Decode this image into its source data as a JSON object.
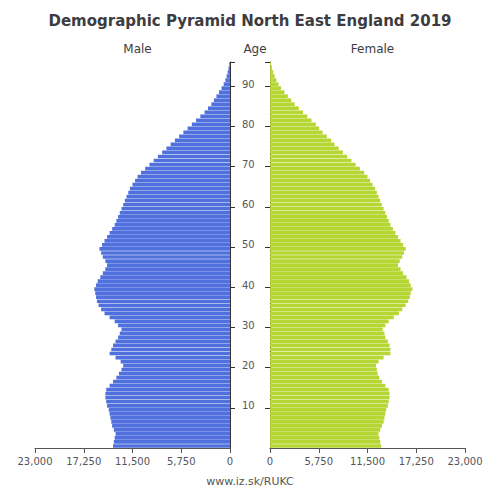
{
  "chart_data": {
    "type": "bar",
    "orientation": "horizontal",
    "title": "Demographic Pyramid North East England 2019",
    "ylabel": "Age",
    "annotations": [
      "www.iz.sk/RUKC"
    ],
    "grid": false,
    "categories": [
      null,
      null,
      null,
      null,
      null,
      null,
      null,
      null,
      null,
      null,
      "10",
      null,
      null,
      null,
      null,
      null,
      null,
      null,
      null,
      null,
      "20",
      null,
      null,
      null,
      null,
      null,
      null,
      null,
      null,
      null,
      "30",
      null,
      null,
      null,
      null,
      null,
      null,
      null,
      null,
      null,
      "40",
      null,
      null,
      null,
      null,
      null,
      null,
      null,
      null,
      null,
      "50",
      null,
      null,
      null,
      null,
      null,
      null,
      null,
      null,
      null,
      "60",
      null,
      null,
      null,
      null,
      null,
      null,
      null,
      null,
      null,
      "70",
      null,
      null,
      null,
      null,
      null,
      null,
      null,
      null,
      null,
      "80",
      null,
      null,
      null,
      null,
      null,
      null,
      null,
      null,
      null,
      "90",
      null,
      null,
      null,
      null,
      null
    ],
    "xlim": [
      0,
      23000
    ],
    "xticks": [
      0,
      5750,
      11500,
      17250,
      23000
    ],
    "series": [
      {
        "name": "Male",
        "values": [
          13800,
          13700,
          13600,
          13500,
          13700,
          13900,
          14000,
          14100,
          14200,
          14300,
          14500,
          14600,
          14700,
          14700,
          14600,
          14200,
          13800,
          13400,
          13100,
          12800,
          12600,
          12900,
          13500,
          14200,
          14000,
          13800,
          13500,
          13200,
          13000,
          12800,
          13200,
          13600,
          14200,
          14800,
          15200,
          15500,
          15700,
          15800,
          15900,
          16000,
          15800,
          15600,
          15300,
          15000,
          14700,
          14500,
          14700,
          15000,
          15200,
          15400,
          15100,
          14800,
          14500,
          14200,
          13900,
          13600,
          13400,
          13200,
          13000,
          12800,
          12600,
          12400,
          12200,
          12000,
          11800,
          11500,
          11200,
          10900,
          10500,
          10000,
          9500,
          9000,
          8500,
          8000,
          7500,
          7000,
          6500,
          6000,
          5500,
          5000,
          4500,
          4000,
          3500,
          3000,
          2600,
          2200,
          1900,
          1600,
          1300,
          1000,
          750,
          550,
          400,
          280,
          180,
          100
        ]
      },
      {
        "name": "Female",
        "values": [
          13100,
          13000,
          12900,
          12800,
          13000,
          13200,
          13400,
          13500,
          13600,
          13700,
          13900,
          14000,
          14100,
          14100,
          14000,
          13600,
          13200,
          12900,
          12700,
          12600,
          12500,
          12800,
          13400,
          14200,
          14200,
          14100,
          13900,
          13600,
          13500,
          13300,
          13600,
          14000,
          14600,
          15200,
          15600,
          16000,
          16300,
          16500,
          16600,
          16800,
          16600,
          16400,
          16100,
          15700,
          15400,
          15100,
          15300,
          15600,
          15800,
          16000,
          15700,
          15400,
          15100,
          14800,
          14500,
          14200,
          14000,
          13800,
          13600,
          13400,
          13200,
          13000,
          12800,
          12600,
          12400,
          12100,
          11800,
          11500,
          11100,
          10600,
          10100,
          9600,
          9100,
          8600,
          8100,
          7600,
          7200,
          6700,
          6200,
          5800,
          5400,
          4900,
          4400,
          3900,
          3400,
          2900,
          2500,
          2100,
          1700,
          1300,
          1000,
          750,
          550,
          380,
          240,
          140
        ]
      }
    ]
  }
}
